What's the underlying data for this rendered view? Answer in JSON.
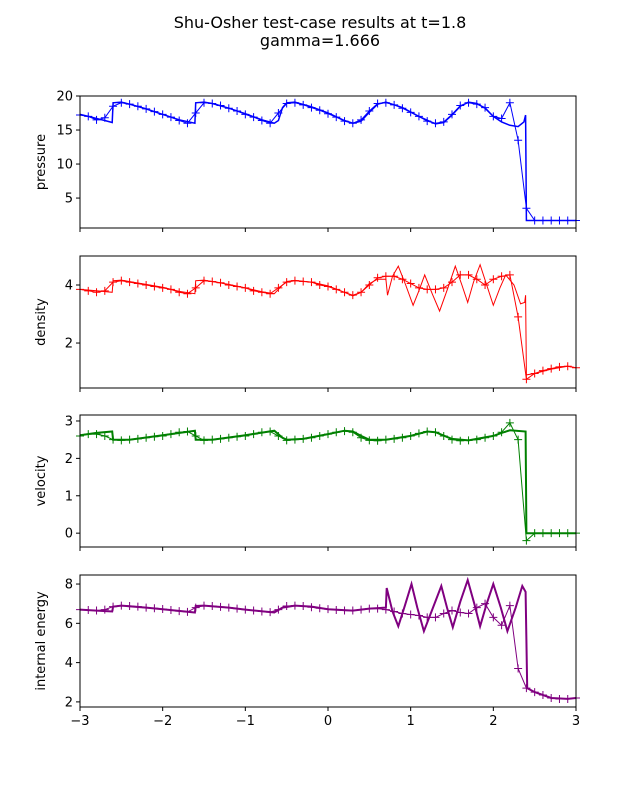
{
  "chart_data": [
    {
      "type": "line",
      "title": "Shu-Osher test-case results at t=1.8",
      "subtitle": "gamma=1.666",
      "ylabel": "pressure",
      "color": "#0000ff",
      "xlim": [
        -3,
        3
      ],
      "ylim": [
        0.6,
        20.0
      ],
      "yticks": [
        5,
        10,
        15,
        20
      ],
      "ytick_labels": [
        "5",
        "10",
        "15",
        "20"
      ],
      "show_xtick_labels": false,
      "ref_linewidth": 1.5,
      "reference": [
        [
          -3,
          17.3
        ],
        [
          -2.9,
          17.0
        ],
        [
          -2.8,
          16.7
        ],
        [
          -2.7,
          16.4
        ],
        [
          -2.61,
          16.1
        ],
        [
          -2.6,
          19.0
        ],
        [
          -2.5,
          19.1
        ],
        [
          -2.4,
          18.8
        ],
        [
          -2.2,
          18.1
        ],
        [
          -2.0,
          17.3
        ],
        [
          -1.8,
          16.5
        ],
        [
          -1.61,
          16.0
        ],
        [
          -1.6,
          19.0
        ],
        [
          -1.5,
          19.1
        ],
        [
          -1.4,
          18.9
        ],
        [
          -1.2,
          18.2
        ],
        [
          -1.0,
          17.4
        ],
        [
          -0.8,
          16.5
        ],
        [
          -0.65,
          16.0
        ],
        [
          -0.6,
          16.4
        ],
        [
          -0.55,
          18.3
        ],
        [
          -0.5,
          19.0
        ],
        [
          -0.4,
          19.1
        ],
        [
          -0.2,
          18.4
        ],
        [
          0,
          17.5
        ],
        [
          0.2,
          16.4
        ],
        [
          0.3,
          16.0
        ],
        [
          0.4,
          16.3
        ],
        [
          0.5,
          17.6
        ],
        [
          0.6,
          18.8
        ],
        [
          0.7,
          19.1
        ],
        [
          0.9,
          18.3
        ],
        [
          1.1,
          17.0
        ],
        [
          1.3,
          15.9
        ],
        [
          1.4,
          16.1
        ],
        [
          1.5,
          17.2
        ],
        [
          1.6,
          18.5
        ],
        [
          1.7,
          19.1
        ],
        [
          1.8,
          18.9
        ],
        [
          1.9,
          18.2
        ],
        [
          2.0,
          17.0
        ],
        [
          2.1,
          16.2
        ],
        [
          2.2,
          15.7
        ],
        [
          2.3,
          15.5
        ],
        [
          2.37,
          16.2
        ],
        [
          2.39,
          17.2
        ],
        [
          2.4,
          1.7
        ],
        [
          3,
          1.7
        ]
      ],
      "simulation": [
        17.2,
        17.0,
        16.5,
        16.8,
        18.5,
        19.0,
        18.8,
        18.5,
        18.1,
        17.7,
        17.3,
        16.9,
        16.4,
        16.0,
        17.5,
        19.0,
        18.9,
        18.6,
        18.2,
        17.8,
        17.3,
        16.9,
        16.4,
        16.0,
        17.5,
        18.9,
        19.0,
        18.7,
        18.3,
        17.9,
        17.4,
        16.9,
        16.3,
        16.0,
        16.5,
        17.8,
        18.9,
        19.0,
        18.7,
        18.2,
        17.6,
        17.0,
        16.3,
        16.0,
        16.2,
        17.3,
        18.6,
        19.0,
        18.8,
        18.3,
        17.0,
        16.7,
        19.0,
        13.5,
        3.5,
        1.7,
        1.7,
        1.7,
        1.7,
        1.7,
        1.7
      ]
    },
    {
      "type": "line",
      "ylabel": "density",
      "color": "#ff0000",
      "xlim": [
        -3,
        3
      ],
      "ylim": [
        0.45,
        5.0
      ],
      "yticks": [
        2,
        4
      ],
      "ytick_labels": [
        "2",
        "4"
      ],
      "show_xtick_labels": false,
      "ref_linewidth": 1,
      "reference": [
        [
          -3,
          3.85
        ],
        [
          -2.8,
          3.8
        ],
        [
          -2.61,
          3.75
        ],
        [
          -2.6,
          4.15
        ],
        [
          -2.5,
          4.17
        ],
        [
          -2.2,
          4.02
        ],
        [
          -2.0,
          3.92
        ],
        [
          -1.8,
          3.78
        ],
        [
          -1.61,
          3.7
        ],
        [
          -1.6,
          4.15
        ],
        [
          -1.5,
          4.17
        ],
        [
          -1.2,
          4.02
        ],
        [
          -1.0,
          3.9
        ],
        [
          -0.8,
          3.77
        ],
        [
          -0.65,
          3.7
        ],
        [
          -0.55,
          4.0
        ],
        [
          -0.5,
          4.12
        ],
        [
          -0.4,
          4.16
        ],
        [
          -0.2,
          4.1
        ],
        [
          0,
          3.97
        ],
        [
          0.2,
          3.75
        ],
        [
          0.3,
          3.62
        ],
        [
          0.4,
          3.75
        ],
        [
          0.5,
          4.05
        ],
        [
          0.6,
          4.2
        ],
        [
          0.7,
          4.2
        ],
        [
          0.72,
          3.65
        ],
        [
          0.78,
          4.3
        ],
        [
          0.85,
          4.65
        ],
        [
          0.94,
          4.0
        ],
        [
          1.03,
          3.3
        ],
        [
          1.1,
          3.8
        ],
        [
          1.17,
          4.35
        ],
        [
          1.26,
          3.7
        ],
        [
          1.35,
          3.1
        ],
        [
          1.45,
          3.9
        ],
        [
          1.54,
          4.65
        ],
        [
          1.62,
          4.0
        ],
        [
          1.69,
          3.4
        ],
        [
          1.76,
          4.1
        ],
        [
          1.84,
          4.7
        ],
        [
          1.92,
          4.0
        ],
        [
          2.0,
          3.3
        ],
        [
          2.08,
          3.9
        ],
        [
          2.15,
          4.35
        ],
        [
          2.25,
          4.0
        ],
        [
          2.33,
          3.35
        ],
        [
          2.38,
          3.4
        ],
        [
          2.39,
          3.65
        ],
        [
          2.4,
          0.9
        ],
        [
          2.5,
          0.95
        ],
        [
          2.7,
          1.1
        ],
        [
          2.9,
          1.2
        ],
        [
          3,
          1.15
        ]
      ],
      "simulation": [
        3.85,
        3.8,
        3.75,
        3.8,
        4.1,
        4.15,
        4.1,
        4.05,
        4.0,
        3.95,
        3.9,
        3.85,
        3.75,
        3.7,
        3.9,
        4.15,
        4.12,
        4.08,
        4.0,
        3.95,
        3.9,
        3.8,
        3.75,
        3.7,
        3.9,
        4.1,
        4.15,
        4.12,
        4.1,
        4.0,
        3.95,
        3.85,
        3.75,
        3.65,
        3.75,
        4.0,
        4.25,
        4.3,
        4.3,
        4.2,
        4.05,
        3.9,
        3.85,
        3.85,
        3.9,
        4.1,
        4.35,
        4.35,
        4.2,
        4.0,
        4.2,
        4.3,
        4.35,
        2.9,
        0.75,
        0.95,
        1.05,
        1.12,
        1.18,
        1.2,
        1.15
      ]
    },
    {
      "type": "line",
      "ylabel": "velocity",
      "color": "#008000",
      "xlim": [
        -3,
        3
      ],
      "ylim": [
        -0.37,
        3.16
      ],
      "yticks": [
        0,
        1,
        2,
        3
      ],
      "ytick_labels": [
        "0",
        "1",
        "2",
        "3"
      ],
      "show_xtick_labels": false,
      "ref_linewidth": 2,
      "reference": [
        [
          -3,
          2.62
        ],
        [
          -2.8,
          2.68
        ],
        [
          -2.61,
          2.72
        ],
        [
          -2.6,
          2.5
        ],
        [
          -2.4,
          2.5
        ],
        [
          -2.0,
          2.62
        ],
        [
          -1.61,
          2.74
        ],
        [
          -1.6,
          2.5
        ],
        [
          -1.4,
          2.5
        ],
        [
          -1.0,
          2.62
        ],
        [
          -0.65,
          2.74
        ],
        [
          -0.55,
          2.55
        ],
        [
          -0.5,
          2.5
        ],
        [
          -0.3,
          2.52
        ],
        [
          0,
          2.65
        ],
        [
          0.2,
          2.74
        ],
        [
          0.3,
          2.72
        ],
        [
          0.4,
          2.6
        ],
        [
          0.5,
          2.5
        ],
        [
          0.7,
          2.5
        ],
        [
          1.0,
          2.6
        ],
        [
          1.2,
          2.72
        ],
        [
          1.3,
          2.7
        ],
        [
          1.5,
          2.52
        ],
        [
          1.7,
          2.48
        ],
        [
          2.0,
          2.6
        ],
        [
          2.1,
          2.68
        ],
        [
          2.2,
          2.75
        ],
        [
          2.39,
          2.72
        ],
        [
          2.4,
          0
        ],
        [
          3,
          0
        ]
      ],
      "simulation": [
        2.6,
        2.65,
        2.65,
        2.6,
        2.5,
        2.48,
        2.5,
        2.52,
        2.55,
        2.58,
        2.6,
        2.65,
        2.7,
        2.72,
        2.6,
        2.48,
        2.5,
        2.52,
        2.55,
        2.58,
        2.6,
        2.65,
        2.7,
        2.72,
        2.6,
        2.48,
        2.5,
        2.52,
        2.55,
        2.6,
        2.65,
        2.7,
        2.73,
        2.7,
        2.55,
        2.48,
        2.47,
        2.5,
        2.52,
        2.55,
        2.6,
        2.67,
        2.72,
        2.7,
        2.6,
        2.5,
        2.47,
        2.48,
        2.5,
        2.55,
        2.6,
        2.7,
        2.95,
        2.5,
        -0.2,
        0,
        0,
        0,
        0,
        0,
        0
      ]
    },
    {
      "type": "line",
      "ylabel": "internal energy",
      "color": "#800080",
      "xlim": [
        -3,
        3
      ],
      "ylim": [
        1.74,
        8.46
      ],
      "yticks": [
        2,
        4,
        6,
        8
      ],
      "ytick_labels": [
        "2",
        "4",
        "6",
        "8"
      ],
      "show_xtick_labels": true,
      "ref_linewidth": 2,
      "reference": [
        [
          -3,
          6.7
        ],
        [
          -2.8,
          6.65
        ],
        [
          -2.61,
          6.6
        ],
        [
          -2.6,
          6.85
        ],
        [
          -2.5,
          6.9
        ],
        [
          -2.2,
          6.8
        ],
        [
          -2.0,
          6.72
        ],
        [
          -1.61,
          6.55
        ],
        [
          -1.6,
          6.88
        ],
        [
          -1.5,
          6.9
        ],
        [
          -1.2,
          6.8
        ],
        [
          -1.0,
          6.7
        ],
        [
          -0.65,
          6.55
        ],
        [
          -0.55,
          6.8
        ],
        [
          -0.4,
          6.9
        ],
        [
          -0.2,
          6.85
        ],
        [
          0,
          6.72
        ],
        [
          0.3,
          6.65
        ],
        [
          0.5,
          6.75
        ],
        [
          0.7,
          6.8
        ],
        [
          0.71,
          7.8
        ],
        [
          0.78,
          6.6
        ],
        [
          0.85,
          5.85
        ],
        [
          0.93,
          6.9
        ],
        [
          1.01,
          8.0
        ],
        [
          1.08,
          6.8
        ],
        [
          1.16,
          5.6
        ],
        [
          1.27,
          6.8
        ],
        [
          1.37,
          7.9
        ],
        [
          1.44,
          6.8
        ],
        [
          1.51,
          5.8
        ],
        [
          1.6,
          7.1
        ],
        [
          1.69,
          8.2
        ],
        [
          1.77,
          7.0
        ],
        [
          1.84,
          5.85
        ],
        [
          1.92,
          7.0
        ],
        [
          2.0,
          8.0
        ],
        [
          2.09,
          6.8
        ],
        [
          2.17,
          5.6
        ],
        [
          2.27,
          6.8
        ],
        [
          2.35,
          7.9
        ],
        [
          2.39,
          7.6
        ],
        [
          2.41,
          2.7
        ],
        [
          2.5,
          2.5
        ],
        [
          2.7,
          2.2
        ],
        [
          2.9,
          2.15
        ],
        [
          3,
          2.2
        ]
      ],
      "simulation": [
        6.7,
        6.68,
        6.65,
        6.7,
        6.85,
        6.9,
        6.88,
        6.85,
        6.8,
        6.77,
        6.73,
        6.68,
        6.62,
        6.58,
        6.8,
        6.9,
        6.88,
        6.84,
        6.8,
        6.75,
        6.7,
        6.65,
        6.6,
        6.57,
        6.7,
        6.88,
        6.9,
        6.88,
        6.82,
        6.77,
        6.72,
        6.68,
        6.65,
        6.65,
        6.7,
        6.75,
        6.75,
        6.7,
        6.6,
        6.5,
        6.45,
        6.4,
        6.3,
        6.3,
        6.5,
        6.65,
        6.55,
        6.5,
        6.8,
        7.0,
        6.3,
        5.9,
        6.9,
        3.7,
        2.7,
        2.5,
        2.35,
        2.2,
        2.15,
        2.15,
        2.2
      ]
    }
  ],
  "x_grid": [
    -3,
    -2.9,
    -2.8,
    -2.7,
    -2.6,
    -2.5,
    -2.4,
    -2.3,
    -2.2,
    -2.1,
    -2,
    -1.9,
    -1.8,
    -1.7,
    -1.6,
    -1.5,
    -1.4,
    -1.3,
    -1.2,
    -1.1,
    -1,
    -0.9,
    -0.8,
    -0.7,
    -0.6,
    -0.5,
    -0.4,
    -0.3,
    -0.2,
    -0.1,
    0,
    0.1,
    0.2,
    0.3,
    0.4,
    0.5,
    0.6,
    0.7,
    0.8,
    0.9,
    1,
    1.1,
    1.2,
    1.3,
    1.4,
    1.5,
    1.6,
    1.7,
    1.8,
    1.9,
    2,
    2.1,
    2.2,
    2.3,
    2.4,
    2.5,
    2.6,
    2.7,
    2.8,
    2.9,
    3
  ],
  "xticks": [
    -3,
    -2,
    -1,
    0,
    1,
    2,
    3
  ],
  "xtick_labels": [
    "−3",
    "−2",
    "−1",
    "0",
    "1",
    "2",
    "3"
  ]
}
